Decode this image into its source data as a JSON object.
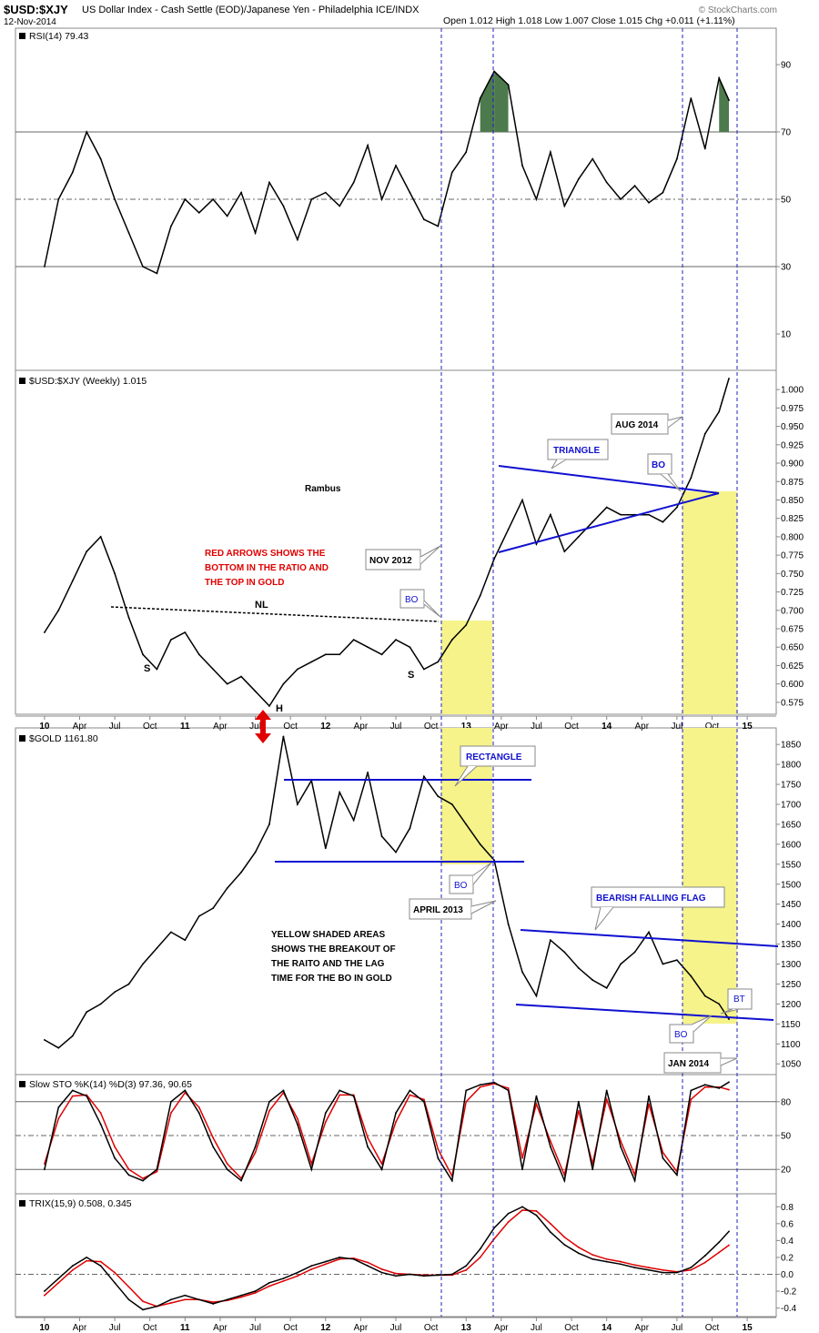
{
  "header": {
    "symbol": "$USD:$XJY",
    "description": "US Dollar Index - Cash Settle (EOD)/Japanese Yen - Philadelphia ICE/INDX",
    "date": "12-Nov-2014",
    "ohlc": "Open 1.012  High 1.018  Low 1.007  Close 1.015  Chg +0.011 (+1.11%)",
    "watermark": "© StockCharts.com"
  },
  "x_axis": {
    "labels": [
      "10",
      "Apr",
      "Jul",
      "Oct",
      "11",
      "Apr",
      "Jul",
      "Oct",
      "12",
      "Apr",
      "Jul",
      "Oct",
      "13",
      "Apr",
      "Jul",
      "Oct",
      "14",
      "Apr",
      "Jul",
      "Oct",
      "15"
    ],
    "bold": [
      "10",
      "11",
      "12",
      "13",
      "14",
      "15"
    ]
  },
  "chart_data": [
    {
      "type": "line",
      "title": "RSI(14) 79.43",
      "yticks": [
        10,
        30,
        50,
        70,
        90
      ],
      "ylim": [
        0,
        100
      ],
      "reference_lines": [
        30,
        50,
        70
      ],
      "x": [
        2010.0,
        2010.1,
        2010.2,
        2010.3,
        2010.4,
        2010.5,
        2010.6,
        2010.7,
        2010.8,
        2010.9,
        2011.0,
        2011.1,
        2011.2,
        2011.3,
        2011.4,
        2011.5,
        2011.6,
        2011.7,
        2011.8,
        2011.9,
        2012.0,
        2012.1,
        2012.2,
        2012.3,
        2012.4,
        2012.5,
        2012.6,
        2012.7,
        2012.8,
        2012.9,
        2013.0,
        2013.1,
        2013.2,
        2013.3,
        2013.4,
        2013.5,
        2013.6,
        2013.7,
        2013.8,
        2013.9,
        2014.0,
        2014.1,
        2014.2,
        2014.3,
        2014.4,
        2014.5,
        2014.6,
        2014.7,
        2014.8,
        2014.87
      ],
      "values": [
        30,
        50,
        58,
        70,
        62,
        50,
        40,
        30,
        28,
        42,
        50,
        46,
        50,
        45,
        52,
        40,
        55,
        48,
        38,
        50,
        52,
        48,
        55,
        66,
        50,
        60,
        52,
        44,
        42,
        58,
        64,
        80,
        88,
        84,
        60,
        50,
        64,
        48,
        56,
        62,
        55,
        50,
        54,
        49,
        52,
        62,
        80,
        65,
        86,
        79.43
      ]
    },
    {
      "type": "line",
      "title": "$USD:$XJY (Weekly) 1.015",
      "yticks": [
        0.575,
        0.6,
        0.625,
        0.65,
        0.675,
        0.7,
        0.725,
        0.75,
        0.775,
        0.8,
        0.825,
        0.85,
        0.875,
        0.9,
        0.925,
        0.95,
        0.975,
        1.0
      ],
      "ylim": [
        0.56,
        1.02
      ],
      "x": [
        2010.0,
        2010.1,
        2010.2,
        2010.3,
        2010.4,
        2010.5,
        2010.6,
        2010.7,
        2010.8,
        2010.9,
        2011.0,
        2011.1,
        2011.2,
        2011.3,
        2011.4,
        2011.5,
        2011.6,
        2011.7,
        2011.8,
        2011.9,
        2012.0,
        2012.1,
        2012.2,
        2012.3,
        2012.4,
        2012.5,
        2012.6,
        2012.7,
        2012.8,
        2012.9,
        2013.0,
        2013.1,
        2013.2,
        2013.3,
        2013.4,
        2013.5,
        2013.6,
        2013.7,
        2013.8,
        2013.9,
        2014.0,
        2014.1,
        2014.2,
        2014.3,
        2014.4,
        2014.5,
        2014.6,
        2014.7,
        2014.8,
        2014.87
      ],
      "values": [
        0.67,
        0.7,
        0.74,
        0.78,
        0.8,
        0.75,
        0.69,
        0.64,
        0.62,
        0.66,
        0.67,
        0.64,
        0.62,
        0.6,
        0.61,
        0.59,
        0.57,
        0.6,
        0.62,
        0.63,
        0.64,
        0.64,
        0.66,
        0.65,
        0.64,
        0.66,
        0.65,
        0.62,
        0.63,
        0.66,
        0.68,
        0.72,
        0.77,
        0.81,
        0.85,
        0.79,
        0.83,
        0.78,
        0.8,
        0.82,
        0.84,
        0.83,
        0.83,
        0.83,
        0.82,
        0.84,
        0.88,
        0.94,
        0.97,
        1.015
      ]
    },
    {
      "type": "line",
      "title": "$GOLD 1161.80",
      "yticks": [
        1050,
        1100,
        1150,
        1200,
        1250,
        1300,
        1350,
        1400,
        1450,
        1500,
        1550,
        1600,
        1650,
        1700,
        1750,
        1800,
        1850
      ],
      "ylim": [
        1030,
        1880
      ],
      "x": [
        2010.0,
        2010.1,
        2010.2,
        2010.3,
        2010.4,
        2010.5,
        2010.6,
        2010.7,
        2010.8,
        2010.9,
        2011.0,
        2011.1,
        2011.2,
        2011.3,
        2011.4,
        2011.5,
        2011.6,
        2011.7,
        2011.8,
        2011.9,
        2012.0,
        2012.1,
        2012.2,
        2012.3,
        2012.4,
        2012.5,
        2012.6,
        2012.7,
        2012.8,
        2012.9,
        2013.0,
        2013.1,
        2013.2,
        2013.3,
        2013.4,
        2013.5,
        2013.6,
        2013.7,
        2013.8,
        2013.9,
        2014.0,
        2014.1,
        2014.2,
        2014.3,
        2014.4,
        2014.5,
        2014.6,
        2014.7,
        2014.8,
        2014.87
      ],
      "values": [
        1110,
        1090,
        1120,
        1180,
        1200,
        1230,
        1250,
        1300,
        1340,
        1380,
        1360,
        1420,
        1440,
        1490,
        1530,
        1580,
        1650,
        1870,
        1700,
        1760,
        1590,
        1730,
        1660,
        1780,
        1620,
        1580,
        1640,
        1770,
        1720,
        1700,
        1650,
        1600,
        1560,
        1400,
        1280,
        1220,
        1360,
        1330,
        1290,
        1260,
        1240,
        1300,
        1330,
        1380,
        1300,
        1310,
        1270,
        1220,
        1200,
        1162
      ]
    },
    {
      "type": "line",
      "title": "Slow STO %K(14) %D(3) 97.36, 90.65",
      "yticks": [
        20,
        50,
        80
      ],
      "ylim": [
        0,
        100
      ],
      "reference_lines": [
        20,
        50,
        80
      ],
      "series": [
        {
          "name": "%K(14)",
          "color": "#000000",
          "values": [
            20,
            75,
            90,
            85,
            60,
            30,
            15,
            10,
            20,
            80,
            90,
            70,
            40,
            20,
            10,
            40,
            80,
            90,
            60,
            20,
            70,
            90,
            85,
            40,
            20,
            70,
            90,
            80,
            30,
            10,
            90,
            95,
            97,
            90,
            20,
            85,
            40,
            10,
            80,
            20,
            90,
            40,
            10,
            85,
            30,
            15,
            90,
            95,
            92,
            97.36
          ]
        },
        {
          "name": "%D(3)",
          "color": "#e00000",
          "values": [
            25,
            65,
            85,
            86,
            70,
            40,
            20,
            12,
            18,
            70,
            88,
            75,
            48,
            25,
            12,
            35,
            72,
            88,
            65,
            25,
            62,
            86,
            86,
            48,
            25,
            62,
            86,
            82,
            38,
            14,
            80,
            93,
            96,
            92,
            30,
            78,
            45,
            15,
            72,
            25,
            82,
            45,
            15,
            78,
            35,
            18,
            82,
            93,
            93,
            90.65
          ]
        }
      ],
      "x": [
        2010.0,
        2010.1,
        2010.2,
        2010.3,
        2010.4,
        2010.5,
        2010.6,
        2010.7,
        2010.8,
        2010.9,
        2011.0,
        2011.1,
        2011.2,
        2011.3,
        2011.4,
        2011.5,
        2011.6,
        2011.7,
        2011.8,
        2011.9,
        2012.0,
        2012.1,
        2012.2,
        2012.3,
        2012.4,
        2012.5,
        2012.6,
        2012.7,
        2012.8,
        2012.9,
        2013.0,
        2013.1,
        2013.2,
        2013.3,
        2013.4,
        2013.5,
        2013.6,
        2013.7,
        2013.8,
        2013.9,
        2014.0,
        2014.1,
        2014.2,
        2014.3,
        2014.4,
        2014.5,
        2014.6,
        2014.7,
        2014.8,
        2014.87
      ]
    },
    {
      "type": "line",
      "title": "TRIX(15,9) 0.508, 0.345",
      "yticks": [
        -0.4,
        -0.2,
        0.0,
        0.2,
        0.4,
        0.6,
        0.8
      ],
      "ylim": [
        -0.48,
        0.9
      ],
      "reference_lines": [
        0.0
      ],
      "series": [
        {
          "name": "TRIX(15)",
          "color": "#000000",
          "values": [
            -0.2,
            -0.05,
            0.1,
            0.2,
            0.1,
            -0.1,
            -0.3,
            -0.42,
            -0.38,
            -0.3,
            -0.25,
            -0.3,
            -0.35,
            -0.3,
            -0.25,
            -0.2,
            -0.1,
            -0.05,
            0.02,
            0.1,
            0.15,
            0.2,
            0.18,
            0.1,
            0.02,
            -0.02,
            0.0,
            -0.02,
            -0.01,
            0.0,
            0.1,
            0.3,
            0.55,
            0.72,
            0.8,
            0.7,
            0.5,
            0.35,
            0.25,
            0.18,
            0.15,
            0.12,
            0.08,
            0.05,
            0.02,
            0.02,
            0.08,
            0.22,
            0.38,
            0.508
          ]
        },
        {
          "name": "signal(9)",
          "color": "#e00000",
          "values": [
            -0.25,
            -0.1,
            0.05,
            0.16,
            0.15,
            0.02,
            -0.15,
            -0.32,
            -0.38,
            -0.34,
            -0.3,
            -0.3,
            -0.33,
            -0.31,
            -0.27,
            -0.22,
            -0.14,
            -0.08,
            -0.02,
            0.06,
            0.12,
            0.18,
            0.19,
            0.14,
            0.06,
            0.01,
            0.0,
            -0.01,
            -0.01,
            -0.01,
            0.05,
            0.2,
            0.42,
            0.62,
            0.76,
            0.75,
            0.6,
            0.44,
            0.32,
            0.23,
            0.18,
            0.15,
            0.11,
            0.08,
            0.05,
            0.03,
            0.05,
            0.14,
            0.26,
            0.345
          ]
        }
      ],
      "x": [
        2010.0,
        2010.1,
        2010.2,
        2010.3,
        2010.4,
        2010.5,
        2010.6,
        2010.7,
        2010.8,
        2010.9,
        2011.0,
        2011.1,
        2011.2,
        2011.3,
        2011.4,
        2011.5,
        2011.6,
        2011.7,
        2011.8,
        2011.9,
        2012.0,
        2012.1,
        2012.2,
        2012.3,
        2012.4,
        2012.5,
        2012.6,
        2012.7,
        2012.8,
        2012.9,
        2013.0,
        2013.1,
        2013.2,
        2013.3,
        2013.4,
        2013.5,
        2013.6,
        2013.7,
        2013.8,
        2013.9,
        2014.0,
        2014.1,
        2014.2,
        2014.3,
        2014.4,
        2014.5,
        2014.6,
        2014.7,
        2014.8,
        2014.87
      ]
    }
  ],
  "annotations": {
    "rambus": "Rambus",
    "red_note": [
      "RED ARROWS SHOWS THE",
      "BOTTOM IN THE RATIO AND",
      "THE TOP IN GOLD"
    ],
    "yellow_note": [
      "YELLOW SHADED AREAS",
      "SHOWS THE BREAKOUT OF",
      "THE RAITO AND THE LAG",
      "TIME FOR THE BO IN GOLD"
    ],
    "nl": "NL",
    "s_left": "S",
    "s_right": "S",
    "h": "H",
    "bo": "BO",
    "bt": "BT",
    "nov2012": "NOV 2012",
    "aug2014": "AUG 2014",
    "april2013": "APRIL 2013",
    "jan2014": "JAN 2014",
    "triangle": "TRIANGLE",
    "rectangle": "RECTANGLE",
    "flag": "BEARISH FALLING FLAG"
  },
  "colors": {
    "pattern_line": "#1010d0",
    "highlight": "#f5f38a",
    "rsi_fill": "#4d7a4d",
    "oversold_fill": "#8b5a5a",
    "vline": "#2020c0",
    "red_arrow": "#e00000",
    "signal": "#e00000"
  }
}
